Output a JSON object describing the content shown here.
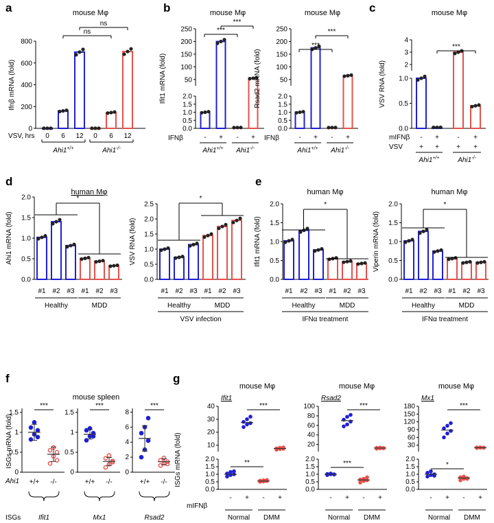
{
  "colors": {
    "blue": "#1f1fd6",
    "red": "#e8504a",
    "black": "#000000"
  },
  "panel_labels": [
    "a",
    "b",
    "c",
    "d",
    "e",
    "f",
    "g"
  ],
  "chart_data": [
    {
      "id": "a",
      "type": "bar",
      "title": "mouse Mφ",
      "ylabel": "Ifnβ mRNA (fold)",
      "ylim": [
        0,
        800
      ],
      "yticks": [
        0,
        200,
        400,
        600,
        800
      ],
      "row_labels": [
        "VSV, hrs"
      ],
      "categories": [
        "0",
        "6",
        "12",
        "0",
        "6",
        "12"
      ],
      "groups": [
        {
          "label": "Ahi1+/+",
          "from": 0,
          "to": 2
        },
        {
          "label": "Ahi1-/-",
          "from": 3,
          "to": 5
        }
      ],
      "series": [
        {
          "values": [
            1,
            160,
            700,
            1,
            145,
            705
          ],
          "colors": [
            "blue",
            "blue",
            "blue",
            "red",
            "red",
            "red"
          ]
        }
      ],
      "significance": [
        "ns",
        "ns"
      ]
    },
    {
      "id": "b1",
      "type": "bar",
      "title": "mouse Mφ",
      "ylabel": "Ifit1 mRNA (fold)",
      "broken_axis": {
        "lower": [
          0,
          2.0
        ],
        "upper": [
          25,
          250
        ]
      },
      "yticks_lower": [
        0.0,
        0.5,
        1.0,
        1.5,
        2.0
      ],
      "yticks_upper": [
        50,
        100,
        150,
        200,
        250
      ],
      "row_labels": [
        "IFNβ"
      ],
      "categories": [
        "-",
        "+",
        "-",
        "+"
      ],
      "groups": [
        {
          "label": "Ahi1+/+",
          "from": 0,
          "to": 1
        },
        {
          "label": "Ahi1-/-",
          "from": 2,
          "to": 3
        }
      ],
      "series": [
        {
          "values": [
            1.0,
            200,
            0.05,
            55
          ],
          "colors": [
            "blue",
            "blue",
            "red",
            "red"
          ]
        }
      ],
      "significance": [
        "***",
        "***"
      ]
    },
    {
      "id": "b2",
      "type": "bar",
      "title": "mouse Mφ",
      "ylabel": "Rsad2 mRNA (fold)",
      "broken_axis": {
        "lower": [
          0,
          2.0
        ],
        "upper": [
          25,
          250
        ]
      },
      "yticks_lower": [
        0.0,
        0.5,
        1.0,
        1.5,
        2.0
      ],
      "yticks_upper": [
        50,
        100,
        150,
        200,
        250
      ],
      "row_labels": [
        "IFNβ"
      ],
      "categories": [
        "-",
        "+",
        "-",
        "+"
      ],
      "groups": [
        {
          "label": "Ahi1+/+",
          "from": 0,
          "to": 1
        },
        {
          "label": "Ahi1-/-",
          "from": 2,
          "to": 3
        }
      ],
      "series": [
        {
          "values": [
            1.0,
            175,
            0.05,
            65
          ],
          "colors": [
            "blue",
            "blue",
            "red",
            "red"
          ]
        }
      ],
      "significance": [
        "***",
        "***"
      ]
    },
    {
      "id": "c",
      "type": "bar",
      "title": "mouse Mφ",
      "ylabel": "VSV RNA (fold)",
      "broken_axis": {
        "lower": [
          0,
          1.0
        ],
        "upper": [
          1.5,
          4.0
        ]
      },
      "yticks_lower": [
        0.0,
        0.5,
        1.0
      ],
      "yticks_upper": [
        2,
        3,
        4
      ],
      "row_labels": [
        "mIFNβ",
        "VSV"
      ],
      "categories": [
        [
          "-",
          "+"
        ],
        [
          "+",
          "+"
        ],
        [
          "-",
          "+"
        ],
        [
          "+",
          "+"
        ]
      ],
      "groups": [
        {
          "label": "Ahi1+/+",
          "from": 0,
          "to": 1
        },
        {
          "label": "Ahi1-/-",
          "from": 2,
          "to": 3
        }
      ],
      "series": [
        {
          "values": [
            1.0,
            0.02,
            3.0,
            0.45
          ],
          "colors": [
            "blue",
            "blue",
            "red",
            "red"
          ]
        }
      ],
      "significance": [
        "***"
      ]
    },
    {
      "id": "d1",
      "type": "bar",
      "title": "",
      "subtitle": "human Mφ",
      "ylabel": "Ahi1 mRNA (fold)",
      "ylim": [
        0,
        2.0
      ],
      "yticks": [
        0.0,
        0.5,
        1.0,
        1.5,
        2.0
      ],
      "categories": [
        "#1",
        "#2",
        "#3",
        "#1",
        "#2",
        "#3"
      ],
      "groups": [
        {
          "label": "Healthy",
          "from": 0,
          "to": 2
        },
        {
          "label": "MDD",
          "from": 3,
          "to": 5
        }
      ],
      "series": [
        {
          "values": [
            1.02,
            1.4,
            0.82,
            0.51,
            0.44,
            0.33
          ],
          "colors": [
            "blue",
            "blue",
            "blue",
            "red",
            "red",
            "red"
          ]
        }
      ],
      "significance": [
        "*"
      ]
    },
    {
      "id": "d2",
      "type": "bar",
      "title": "",
      "ylabel": "VSV RNA (fold)",
      "ylim": [
        0,
        2.5
      ],
      "yticks": [
        0.0,
        0.5,
        1.0,
        1.5,
        2.0,
        2.5
      ],
      "categories": [
        "#1",
        "#2",
        "#3",
        "#1",
        "#2",
        "#3"
      ],
      "groups": [
        {
          "label": "Healthy",
          "from": 0,
          "to": 2
        },
        {
          "label": "MDD",
          "from": 3,
          "to": 5
        }
      ],
      "footer": "VSV infection",
      "series": [
        {
          "values": [
            1.0,
            0.73,
            1.15,
            1.45,
            1.75,
            1.95
          ],
          "colors": [
            "blue",
            "blue",
            "blue",
            "red",
            "red",
            "red"
          ]
        }
      ],
      "significance": [
        "*"
      ]
    },
    {
      "id": "e1",
      "type": "bar",
      "title": "human Mφ",
      "ylabel": "Ifit1 mRNA (fold)",
      "ylim": [
        0,
        2.0
      ],
      "yticks": [
        0.0,
        0.5,
        1.0,
        1.5,
        2.0
      ],
      "categories": [
        "#1",
        "#2",
        "#3",
        "#1",
        "#2",
        "#3"
      ],
      "groups": [
        {
          "label": "Healthy",
          "from": 0,
          "to": 2
        },
        {
          "label": "MDD",
          "from": 3,
          "to": 5
        }
      ],
      "footer": "IFNα treatment",
      "series": [
        {
          "values": [
            1.02,
            1.3,
            0.78,
            0.55,
            0.47,
            0.42
          ],
          "colors": [
            "blue",
            "blue",
            "blue",
            "red",
            "red",
            "red"
          ]
        }
      ],
      "significance": [
        "*"
      ]
    },
    {
      "id": "e2",
      "type": "bar",
      "title": "human Mφ",
      "ylabel": "Viperin mRNA (fold)",
      "ylim": [
        0,
        2.0
      ],
      "yticks": [
        0.0,
        0.5,
        1.0,
        1.5,
        2.0
      ],
      "categories": [
        "#1",
        "#2",
        "#3",
        "#1",
        "#2",
        "#3"
      ],
      "groups": [
        {
          "label": "Healthy",
          "from": 0,
          "to": 2
        },
        {
          "label": "MDD",
          "from": 3,
          "to": 5
        }
      ],
      "footer": "IFNα treatment",
      "series": [
        {
          "values": [
            1.02,
            1.27,
            0.75,
            0.55,
            0.45,
            0.45
          ],
          "colors": [
            "blue",
            "blue",
            "blue",
            "red",
            "red",
            "red"
          ]
        }
      ],
      "significance": [
        "*"
      ]
    },
    {
      "id": "f",
      "type": "scatter",
      "title": "mouse spleen",
      "ylabel": "ISGs mRNA (fold)",
      "row_labels": [
        "Ahi1",
        "ISGs"
      ],
      "subplots": [
        {
          "gene": "Ifit1",
          "ylim": [
            0,
            1.6
          ],
          "categories": [
            "+/+",
            "-/-"
          ],
          "means": [
            1.0,
            0.45
          ],
          "points": [
            [
              0.82,
              0.95,
              1.05,
              1.12,
              1.25,
              0.88
            ],
            [
              0.22,
              0.4,
              0.5,
              0.55,
              0.62,
              0.3
            ]
          ],
          "sd": [
            0.2,
            0.18
          ],
          "significance": "***"
        },
        {
          "gene": "Mx1",
          "ylim": [
            0,
            1.6
          ],
          "categories": [
            "+/+",
            "-/-"
          ],
          "means": [
            0.95,
            0.27
          ],
          "points": [
            [
              0.8,
              0.9,
              0.98,
              1.05,
              1.1,
              0.9
            ],
            [
              0.12,
              0.2,
              0.28,
              0.35,
              0.42,
              0.25
            ]
          ],
          "sd": [
            0.12,
            0.1
          ],
          "significance": "***"
        },
        {
          "gene": "Rsad2",
          "ylim": [
            0,
            8.5
          ],
          "categories": [
            "+/+",
            "-/-"
          ],
          "means": [
            4.5,
            1.4
          ],
          "points": [
            [
              2.0,
              3.0,
              4.2,
              5.2,
              6.0,
              7.2
            ],
            [
              0.9,
              1.2,
              1.4,
              1.6,
              1.9,
              1.1
            ]
          ],
          "sd": [
            1.7,
            0.4
          ],
          "significance": "***"
        }
      ]
    },
    {
      "id": "g",
      "type": "scatter",
      "title": "mouse Mφ",
      "ylabel": "ISGs mRNA (fold)",
      "row_labels": [
        "mIFNβ"
      ],
      "subplots": [
        {
          "gene": "Ifit1",
          "broken_axis": {
            "lower": [
              0,
              2.0
            ],
            "upper": [
              5,
              40
            ]
          },
          "yticks_lower": [
            0.0,
            0.5,
            1.0,
            1.5,
            2.0
          ],
          "yticks_upper": [
            10,
            20,
            30,
            40
          ],
          "categories": [
            "-",
            "+",
            "-",
            "+"
          ],
          "groups": [
            {
              "label": "Normal",
              "from": 0,
              "to": 1
            },
            {
              "label": "DMM",
              "from": 2,
              "to": 3
            }
          ],
          "points": [
            [
              0.85,
              0.95,
              1.0,
              1.05,
              1.15,
              1.2
            ],
            [
              24,
              26,
              27,
              28,
              30,
              32
            ],
            [
              0.5,
              0.52,
              0.55,
              0.58,
              0.6,
              0.62
            ],
            [
              6.5,
              7,
              7.2,
              7.5,
              8,
              8.2
            ]
          ],
          "means": [
            1.0,
            27.5,
            0.55,
            7.4
          ],
          "colors": [
            "blue",
            "blue",
            "red",
            "red"
          ],
          "significance": [
            "**",
            "***"
          ]
        },
        {
          "gene": "Rsad2",
          "broken_axis": {
            "lower": [
              0,
              2.0
            ],
            "upper": [
              5,
              100
            ]
          },
          "yticks_lower": [
            0.0,
            0.5,
            1.0,
            1.5,
            2.0
          ],
          "yticks_upper": [
            20,
            40,
            60,
            80,
            100
          ],
          "categories": [
            "-",
            "+",
            "-",
            "+"
          ],
          "groups": [
            {
              "label": "Normal",
              "from": 0,
              "to": 1
            },
            {
              "label": "DMM",
              "from": 2,
              "to": 3
            }
          ],
          "points": [
            [
              0.95,
              1.0,
              1.0,
              1.02,
              1.05,
              0.98
            ],
            [
              58,
              62,
              68,
              72,
              78,
              82
            ],
            [
              0.45,
              0.55,
              0.6,
              0.65,
              0.7,
              0.8
            ],
            [
              11,
              12,
              12.5,
              13,
              13.5,
              12
            ]
          ],
          "means": [
            1.0,
            70,
            0.62,
            12.5
          ],
          "colors": [
            "blue",
            "blue",
            "red",
            "red"
          ],
          "significance": [
            "***",
            "***"
          ]
        },
        {
          "gene": "Mx1",
          "broken_axis": {
            "lower": [
              0,
              2.0
            ],
            "upper": [
              5,
              180
            ]
          },
          "yticks_lower": [
            0.0,
            0.5,
            1.0,
            1.5,
            2.0
          ],
          "yticks_upper": [
            30,
            60,
            90,
            120,
            150,
            180
          ],
          "categories": [
            "-",
            "+",
            "-",
            "+"
          ],
          "groups": [
            {
              "label": "Normal",
              "from": 0,
              "to": 1
            },
            {
              "label": "DMM",
              "from": 2,
              "to": 3
            }
          ],
          "points": [
            [
              0.85,
              0.95,
              1.0,
              1.1,
              1.2,
              0.9
            ],
            [
              60,
              75,
              85,
              95,
              105,
              115
            ],
            [
              0.6,
              0.7,
              0.75,
              0.8,
              0.85,
              0.7
            ],
            [
              19,
              20,
              20.5,
              21,
              21.5,
              20
            ]
          ],
          "means": [
            1.0,
            88,
            0.75,
            20.3
          ],
          "colors": [
            "blue",
            "blue",
            "red",
            "red"
          ],
          "significance": [
            "*",
            "***"
          ]
        }
      ]
    }
  ]
}
